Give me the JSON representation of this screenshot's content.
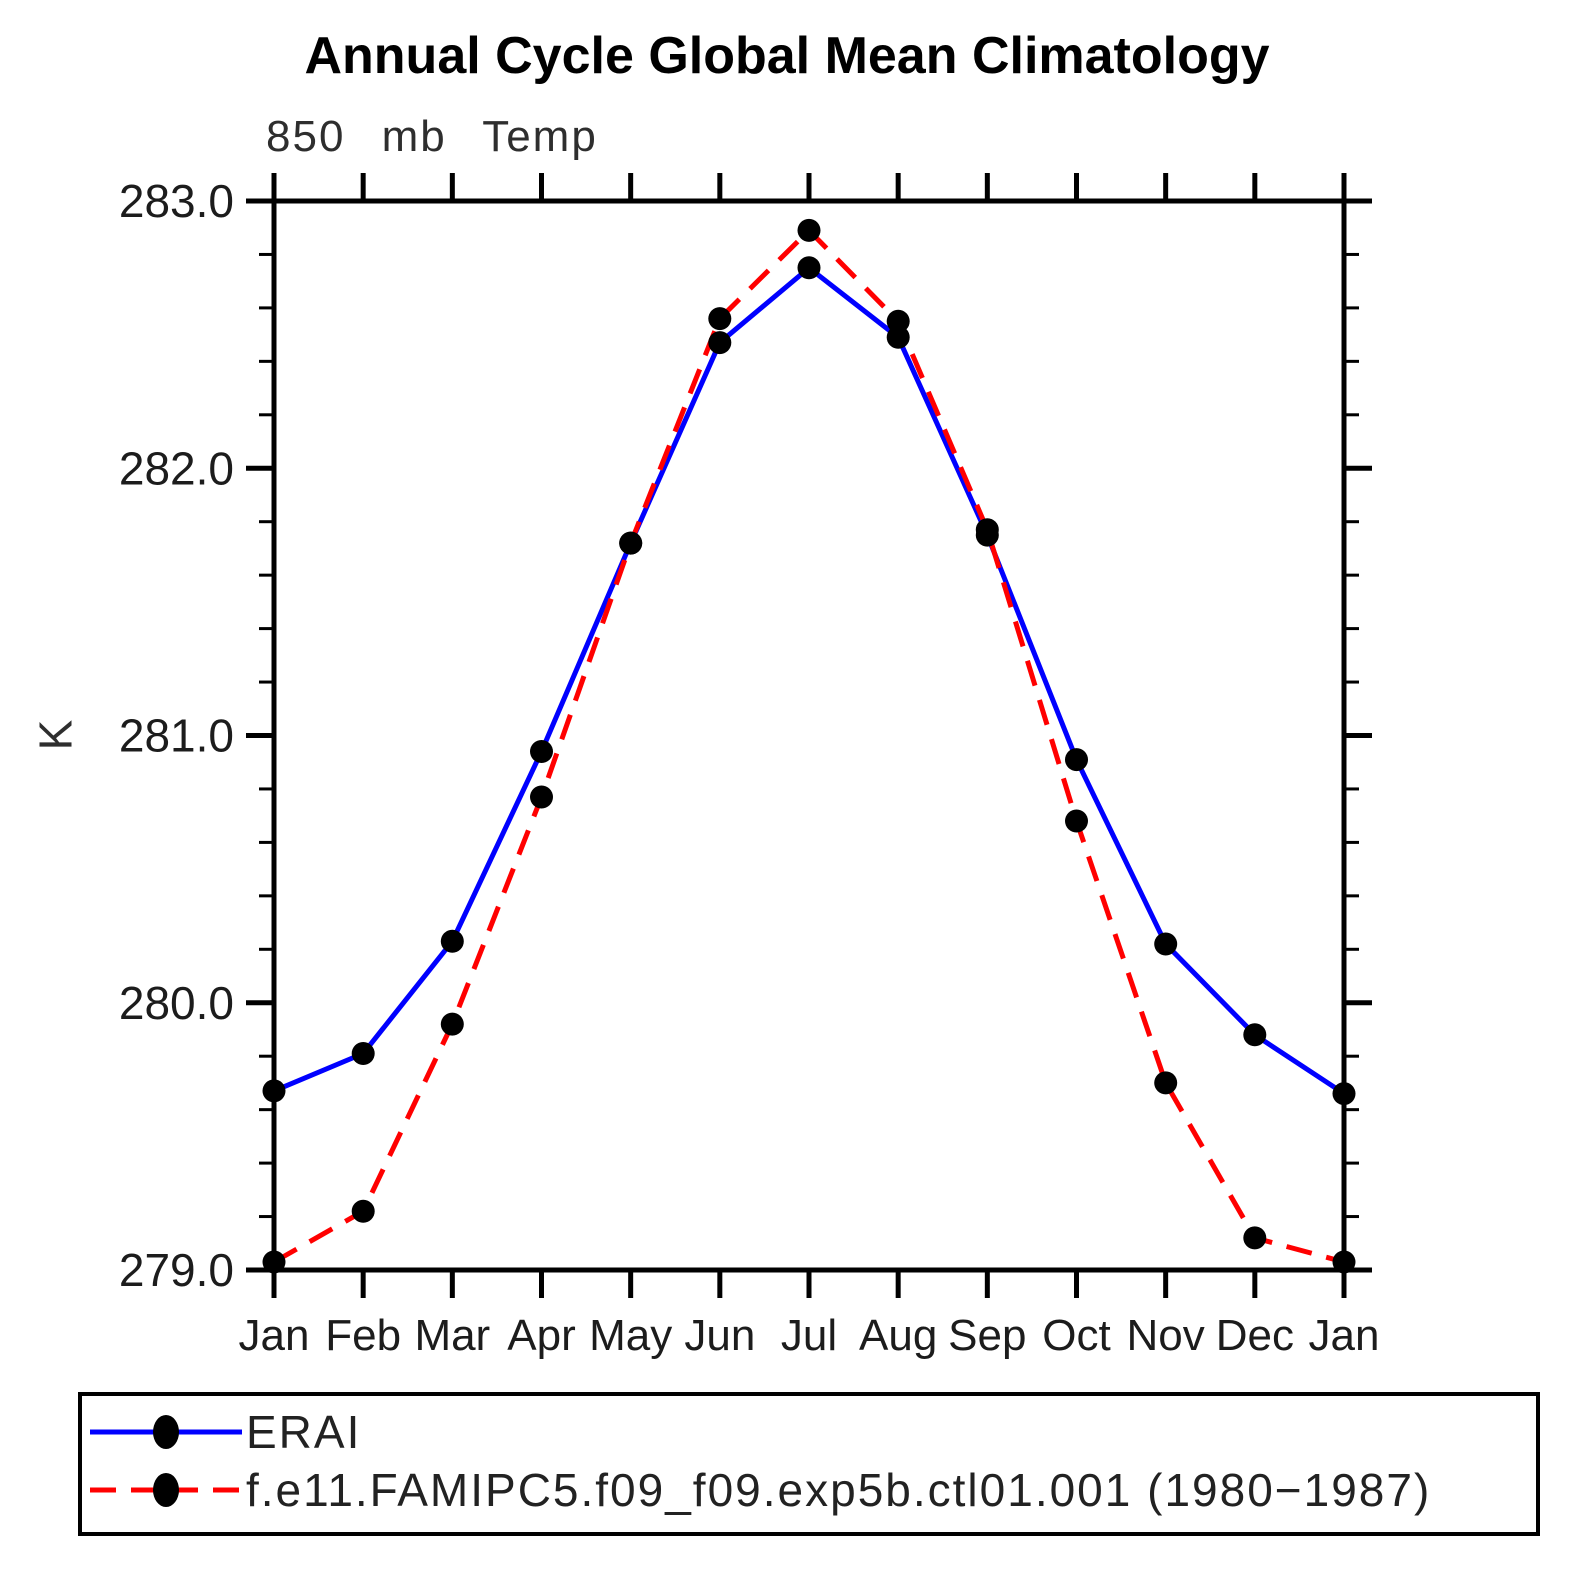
{
  "chart_data": {
    "type": "line",
    "title": "Annual Cycle Global Mean Climatology",
    "subtitle": "850 mb Temp",
    "ylabel": "K",
    "xlabel": "",
    "categories": [
      "Jan",
      "Feb",
      "Mar",
      "Apr",
      "May",
      "Jun",
      "Jul",
      "Aug",
      "Sep",
      "Oct",
      "Nov",
      "Dec",
      "Jan"
    ],
    "series": [
      {
        "name": "ERAI",
        "color": "#0000ff",
        "style": "solid",
        "values": [
          279.67,
          279.81,
          280.23,
          280.94,
          281.72,
          282.47,
          282.75,
          282.49,
          281.75,
          280.91,
          280.22,
          279.88,
          279.66
        ]
      },
      {
        "name": "f.e11.FAMIPC5.f09_f09.exp5b.ctl01.001 (1980−1987)",
        "color": "#ff0000",
        "style": "dashed",
        "values": [
          279.03,
          279.22,
          279.92,
          280.77,
          281.72,
          282.56,
          282.89,
          282.55,
          281.77,
          280.68,
          279.7,
          279.12,
          279.03
        ]
      }
    ],
    "ylim": [
      279.0,
      283.0
    ],
    "y_major_step": 1.0,
    "y_minor_step": 0.2,
    "y_tick_labels": [
      "279.0",
      "280.0",
      "281.0",
      "282.0",
      "283.0"
    ],
    "marker": "filled-circle",
    "marker_color": "#000000",
    "grid": false,
    "legend_position": "bottom"
  }
}
